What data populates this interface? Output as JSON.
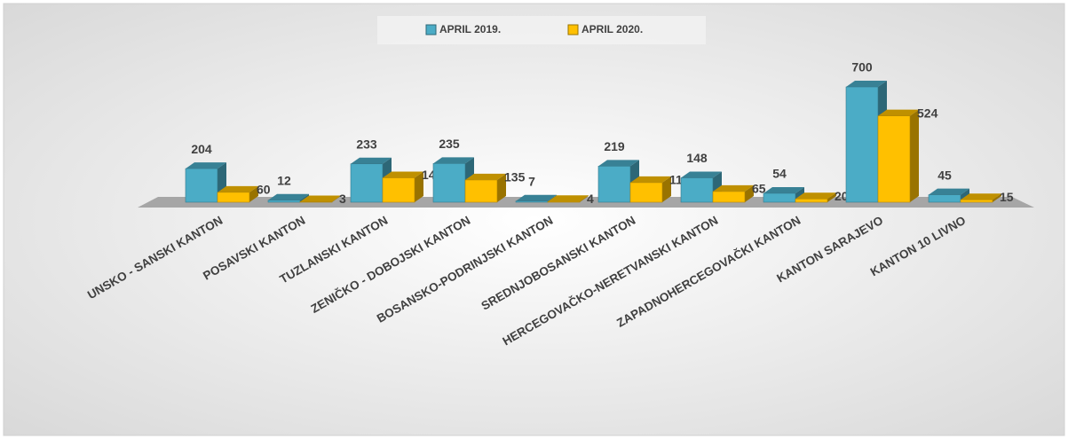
{
  "chart_data": {
    "type": "bar3d",
    "categories": [
      "UNSKO - SANSKI KANTON",
      "POSAVSKI KANTON",
      "TUZLANSKI KANTON",
      "ZENIČKO - DOBOJSKI KANTON",
      "BOSANSKO-PODRINJSKI KANTON",
      "SREDNJOBOSANSKI KANTON",
      "HERCEGOVAČKO-NERETVANSKI KANTON",
      "ZAPADNOHERCEGOVAČKI KANTON",
      "KANTON SARAJEVO",
      "KANTON 10 LIVNO"
    ],
    "series": [
      {
        "name": "APRIL 2019.",
        "color": "#4bacc6",
        "values": [
          204,
          12,
          233,
          235,
          7,
          219,
          148,
          54,
          700,
          45
        ]
      },
      {
        "name": "APRIL 2020.",
        "color": "#ffc000",
        "values": [
          60,
          3,
          148,
          135,
          4,
          119,
          65,
          20,
          524,
          15
        ]
      }
    ],
    "legend": "top"
  }
}
